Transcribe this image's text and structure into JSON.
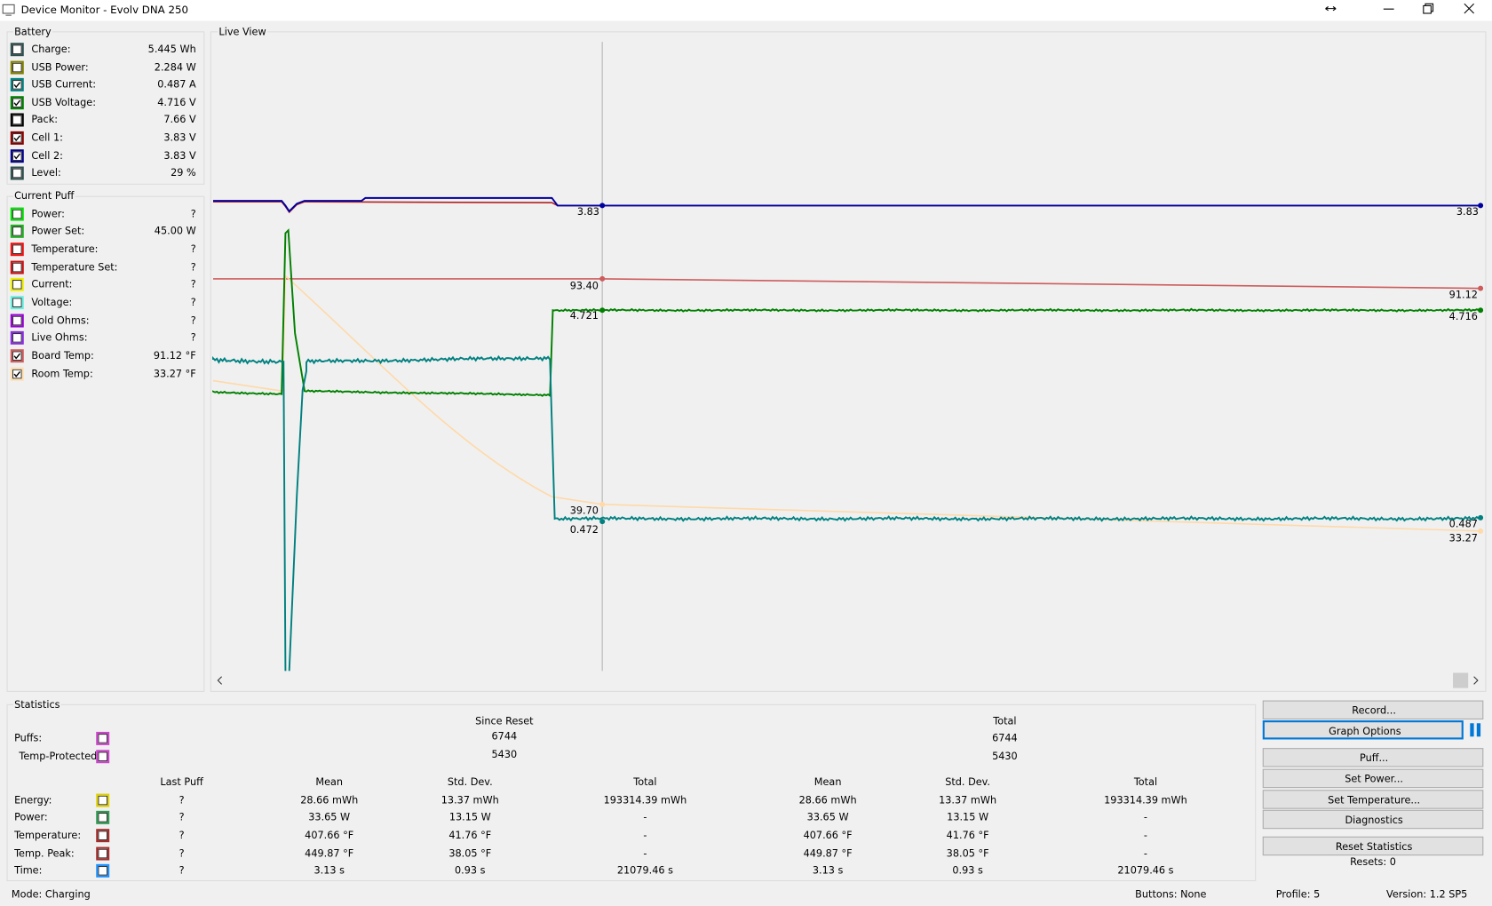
{
  "window_title": "Device Monitor - Evolv DNA 250",
  "battery": {
    "title": "Battery",
    "items": [
      {
        "label": "Charge:",
        "value": "5.445 Wh",
        "checked": false,
        "color": "#2f4f4f"
      },
      {
        "label": "USB Power:",
        "value": "2.284 W",
        "checked": false,
        "color": "#808000"
      },
      {
        "label": "USB Current:",
        "value": "0.487 A",
        "checked": true,
        "color": "#008080"
      },
      {
        "label": "USB Voltage:",
        "value": "4.716 V",
        "checked": true,
        "color": "#008000"
      },
      {
        "label": "Pack:",
        "value": "7.66 V",
        "checked": false,
        "color": "#000000"
      },
      {
        "label": "Cell 1:",
        "value": "3.83 V",
        "checked": true,
        "color": "#8b0000"
      },
      {
        "label": "Cell 2:",
        "value": "3.83 V",
        "checked": true,
        "color": "#00008b"
      },
      {
        "label": "Level:",
        "value": "29 %",
        "checked": false,
        "color": "#2f4f4f"
      }
    ]
  },
  "current_puff": {
    "title": "Current Puff",
    "items": [
      {
        "label": "Power:",
        "value": "?",
        "checked": false,
        "color": "#00e000"
      },
      {
        "label": "Power Set:",
        "value": "45.00 W",
        "checked": false,
        "color": "#22b022"
      },
      {
        "label": "Temperature:",
        "value": "?",
        "checked": false,
        "color": "#ee1111"
      },
      {
        "label": "Temperature Set:",
        "value": "?",
        "checked": false,
        "color": "#cc1111"
      },
      {
        "label": "Current:",
        "value": "?",
        "checked": false,
        "color": "#eeee00"
      },
      {
        "label": "Voltage:",
        "value": "?",
        "checked": false,
        "color": "#66eedd"
      },
      {
        "label": "Cold Ohms:",
        "value": "?",
        "checked": false,
        "color": "#9400d3"
      },
      {
        "label": "Live Ohms:",
        "value": "?",
        "checked": false,
        "color": "#8a2be2"
      },
      {
        "label": "Board Temp:",
        "value": "91.12 °F",
        "checked": true,
        "color": "#cd5c5c"
      },
      {
        "label": "Room Temp:",
        "value": "33.27 °F",
        "checked": true,
        "color": "#ffdead"
      }
    ]
  },
  "live_view": {
    "title": "Live View",
    "labels": [
      "3.83",
      "3.83",
      "93.40",
      "91.12",
      "4.721",
      "4.716",
      "39.70",
      "0.472",
      "0.487",
      "33.27"
    ]
  },
  "statistics": {
    "title": "Statistics",
    "since_reset": "Since Reset",
    "total": "Total",
    "counts": [
      {
        "label": "Puffs:",
        "color": "#cc44cc",
        "since_reset": 6744,
        "total": 6744
      },
      {
        "label": "Temp-Protected:",
        "color": "#cc44cc",
        "since_reset": 5430,
        "total": 5430
      }
    ],
    "columns": [
      "Last Puff",
      "Mean",
      "Std. Dev.",
      "Total",
      "Mean",
      "Std. Dev.",
      "Total"
    ],
    "rows": [
      {
        "label": "Energy:",
        "color": "#e0d000",
        "cells": [
          "?",
          "28.66 mWh",
          "13.37 mWh",
          "193314.39 mWh",
          "28.66 mWh",
          "13.37 mWh",
          "193314.39 mWh"
        ]
      },
      {
        "label": "Power:",
        "color": "#2e9a50",
        "cells": [
          "?",
          "33.65 W",
          "13.15 W",
          "-",
          "33.65 W",
          "13.15 W",
          "-"
        ]
      },
      {
        "label": "Temperature:",
        "color": "#a52a2a",
        "cells": [
          "?",
          "407.66 °F",
          "41.76 °F",
          "-",
          "407.66 °F",
          "41.76 °F",
          "-"
        ]
      },
      {
        "label": "Temp. Peak:",
        "color": "#a52a2a",
        "cells": [
          "?",
          "449.87 °F",
          "38.05 °F",
          "-",
          "449.87 °F",
          "38.05 °F",
          "-"
        ]
      },
      {
        "label": "Time:",
        "color": "#1e90ff",
        "cells": [
          "?",
          "3.13 s",
          "0.93 s",
          "21079.46 s",
          "3.13 s",
          "0.93 s",
          "21079.46 s"
        ]
      }
    ]
  },
  "buttons": [
    "Record...",
    "Graph Options",
    "Puff...",
    "Set Power...",
    "Set Temperature...",
    "Diagnostics",
    "Reset Statistics"
  ],
  "resets": "Resets: 0",
  "status": {
    "mode": "Mode: Charging",
    "buttons": "Buttons: None",
    "profile": "Profile: 5",
    "version": "Version: 1.2 SP5"
  }
}
